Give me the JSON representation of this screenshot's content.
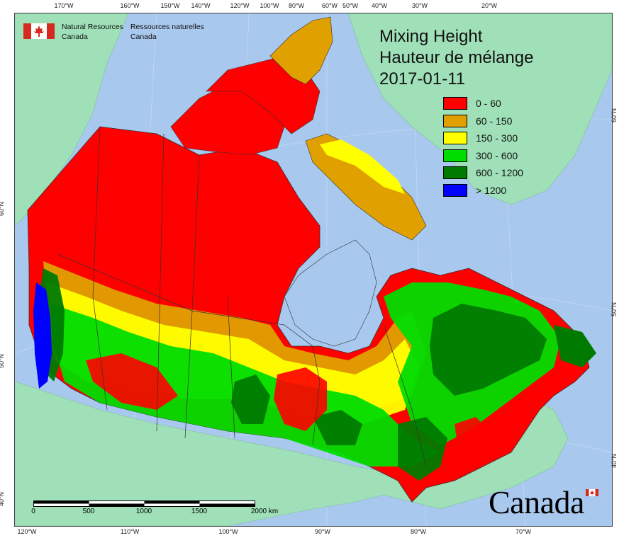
{
  "organization": {
    "en_line1": "Natural Resources",
    "en_line2": "Canada",
    "fr_line1": "Ressources naturelles",
    "fr_line2": "Canada"
  },
  "title": {
    "line1": "Mixing Height",
    "line2": "Hauteur de mélange",
    "date": "2017-01-11"
  },
  "legend": [
    {
      "label": "0 - 60",
      "color": "#ff0000"
    },
    {
      "label": "60 - 150",
      "color": "#e0a000"
    },
    {
      "label": "150 - 300",
      "color": "#ffff00"
    },
    {
      "label": "300 - 600",
      "color": "#00dd00"
    },
    {
      "label": "600 - 1200",
      "color": "#007a00"
    },
    {
      "label": "> 1200",
      "color": "#0000ff"
    }
  ],
  "top_ticks": [
    "170°W",
    "160°W",
    "150°W",
    "140°W",
    "120°W",
    "100°W",
    "80°W",
    "60°W",
    "50°W",
    "40°W",
    "30°W",
    "20°W"
  ],
  "bottom_ticks": [
    "120°W",
    "110°W",
    "100°W",
    "90°W",
    "80°W",
    "70°W"
  ],
  "left_ticks": [
    "60°N",
    "50°N",
    "40°N"
  ],
  "right_ticks": [
    "60°N",
    "50°N",
    "40°N"
  ],
  "scalebar": {
    "labels": [
      "0",
      "500",
      "1000",
      "1500",
      "2000 km"
    ]
  },
  "wordmark": "Canada",
  "colors": {
    "water": "#a8c8ee",
    "land_outside": "#9fe0b8",
    "border": "#333333"
  }
}
